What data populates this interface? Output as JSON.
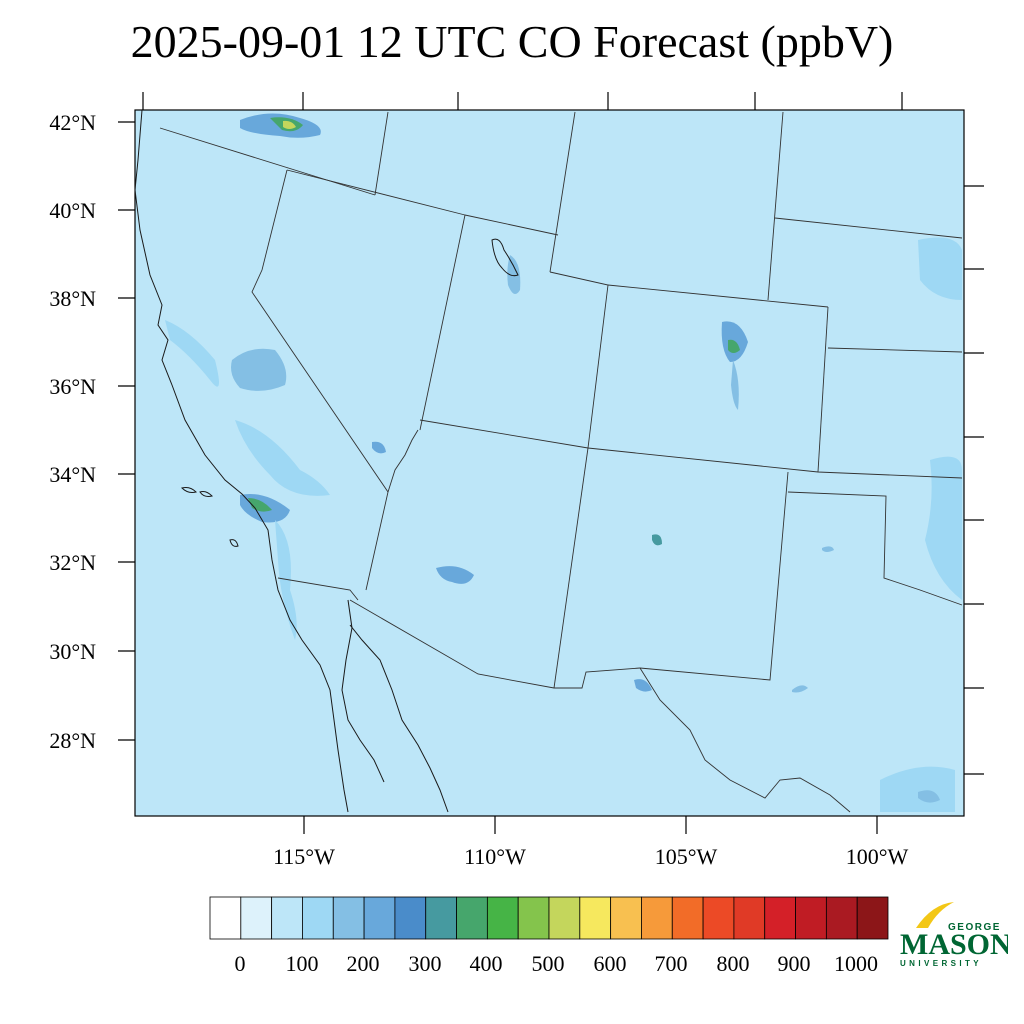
{
  "title": "2025-09-01 12 UTC CO Forecast (ppbV)",
  "latitude_labels": [
    "42°N",
    "40°N",
    "38°N",
    "36°N",
    "34°N",
    "32°N",
    "30°N",
    "28°N"
  ],
  "longitude_labels": [
    "115°W",
    "110°W",
    "105°W",
    "100°W"
  ],
  "colorbar": {
    "labels": [
      "0",
      "100",
      "200",
      "300",
      "400",
      "500",
      "600",
      "700",
      "800",
      "900",
      "1000"
    ],
    "colors": [
      "#ffffff",
      "#ddf2fb",
      "#bde6f8",
      "#9ed8f4",
      "#84bfe4",
      "#68a8db",
      "#4a8cca",
      "#469aa0",
      "#46a66c",
      "#46b446",
      "#84c44c",
      "#c4d65c",
      "#f6e85e",
      "#f8c050",
      "#f69a3a",
      "#f26c28",
      "#ec4a26",
      "#e03a26",
      "#d42028",
      "#c01c24",
      "#aa1a22",
      "#8c1618"
    ]
  },
  "colors": {
    "map_background": "#bde6f8",
    "boundary": "#1a1a1a"
  },
  "logo": {
    "line1": "GEORGE",
    "line2": "MASON",
    "line3": "UNIVERSITY",
    "accent": "#f3c716",
    "brand": "#006633"
  }
}
